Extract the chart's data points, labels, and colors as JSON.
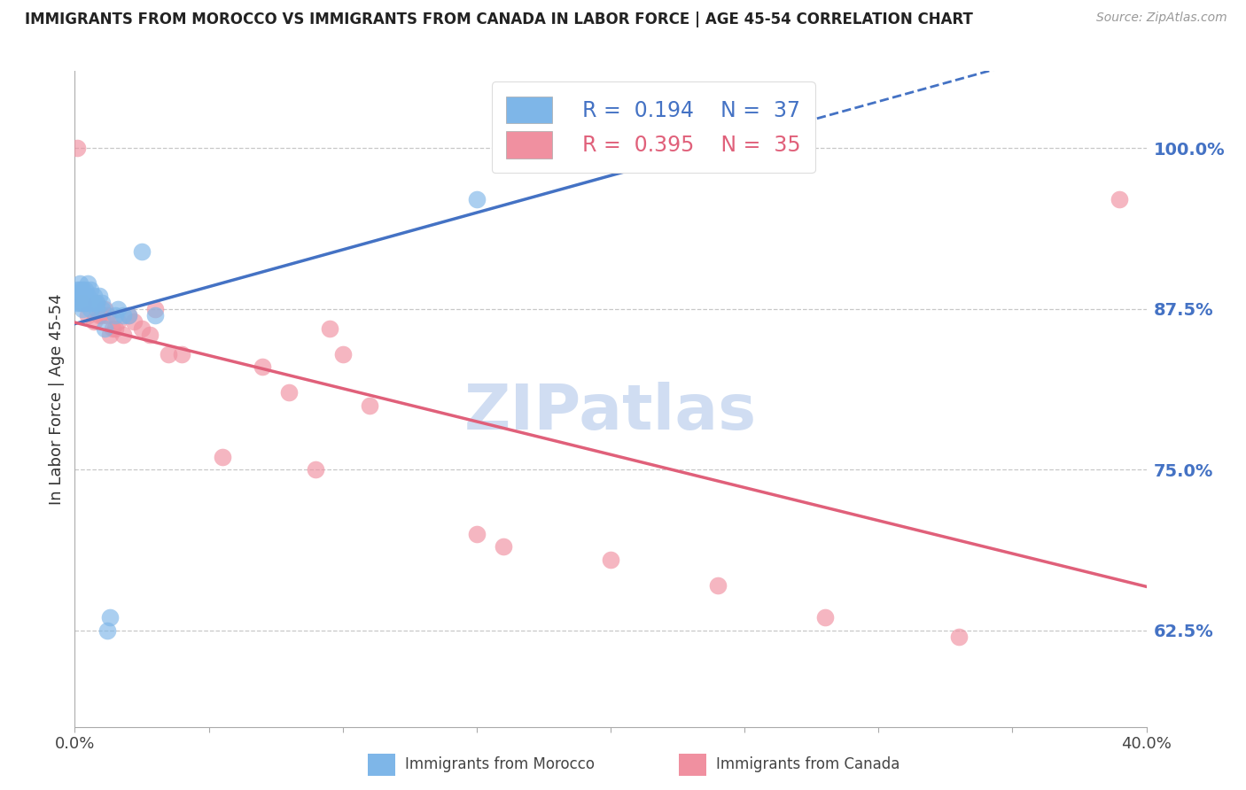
{
  "title": "IMMIGRANTS FROM MOROCCO VS IMMIGRANTS FROM CANADA IN LABOR FORCE | AGE 45-54 CORRELATION CHART",
  "source": "Source: ZipAtlas.com",
  "ylabel": "In Labor Force | Age 45-54",
  "ytick_labels": [
    "62.5%",
    "75.0%",
    "87.5%",
    "100.0%"
  ],
  "ytick_values": [
    0.625,
    0.75,
    0.875,
    1.0
  ],
  "xlim": [
    0.0,
    0.4
  ],
  "ylim": [
    0.55,
    1.06
  ],
  "morocco_R": 0.194,
  "morocco_N": 37,
  "canada_R": 0.395,
  "canada_N": 35,
  "morocco_color": "#7EB6E8",
  "canada_color": "#F090A0",
  "trend_blue": "#4472C4",
  "trend_pink": "#E0607A",
  "morocco_x": [
    0.001,
    0.001,
    0.001,
    0.002,
    0.002,
    0.002,
    0.003,
    0.003,
    0.003,
    0.003,
    0.004,
    0.004,
    0.004,
    0.005,
    0.005,
    0.005,
    0.006,
    0.006,
    0.006,
    0.007,
    0.007,
    0.008,
    0.008,
    0.009,
    0.01,
    0.01,
    0.011,
    0.012,
    0.013,
    0.015,
    0.016,
    0.018,
    0.02,
    0.025,
    0.03,
    0.15,
    0.22
  ],
  "morocco_y": [
    0.88,
    0.885,
    0.89,
    0.88,
    0.89,
    0.895,
    0.875,
    0.88,
    0.885,
    0.89,
    0.88,
    0.885,
    0.89,
    0.88,
    0.885,
    0.895,
    0.875,
    0.88,
    0.89,
    0.88,
    0.885,
    0.875,
    0.88,
    0.885,
    0.875,
    0.88,
    0.86,
    0.625,
    0.635,
    0.87,
    0.875,
    0.87,
    0.87,
    0.92,
    0.87,
    0.96,
    1.0
  ],
  "canada_x": [
    0.001,
    0.003,
    0.005,
    0.007,
    0.008,
    0.009,
    0.01,
    0.011,
    0.012,
    0.013,
    0.014,
    0.015,
    0.016,
    0.018,
    0.02,
    0.022,
    0.025,
    0.028,
    0.03,
    0.035,
    0.04,
    0.055,
    0.07,
    0.08,
    0.09,
    0.095,
    0.1,
    0.11,
    0.15,
    0.16,
    0.2,
    0.24,
    0.28,
    0.33,
    0.39
  ],
  "canada_y": [
    1.0,
    0.88,
    0.87,
    0.865,
    0.88,
    0.87,
    0.87,
    0.875,
    0.87,
    0.855,
    0.86,
    0.86,
    0.865,
    0.855,
    0.87,
    0.865,
    0.86,
    0.855,
    0.875,
    0.84,
    0.84,
    0.76,
    0.83,
    0.81,
    0.75,
    0.86,
    0.84,
    0.8,
    0.7,
    0.69,
    0.68,
    0.66,
    0.635,
    0.62,
    0.96
  ],
  "background_color": "#FFFFFF",
  "grid_color": "#C8C8C8",
  "zipatlas_color": "#C8D8F0",
  "zipatlas_text": "ZIPatlas"
}
